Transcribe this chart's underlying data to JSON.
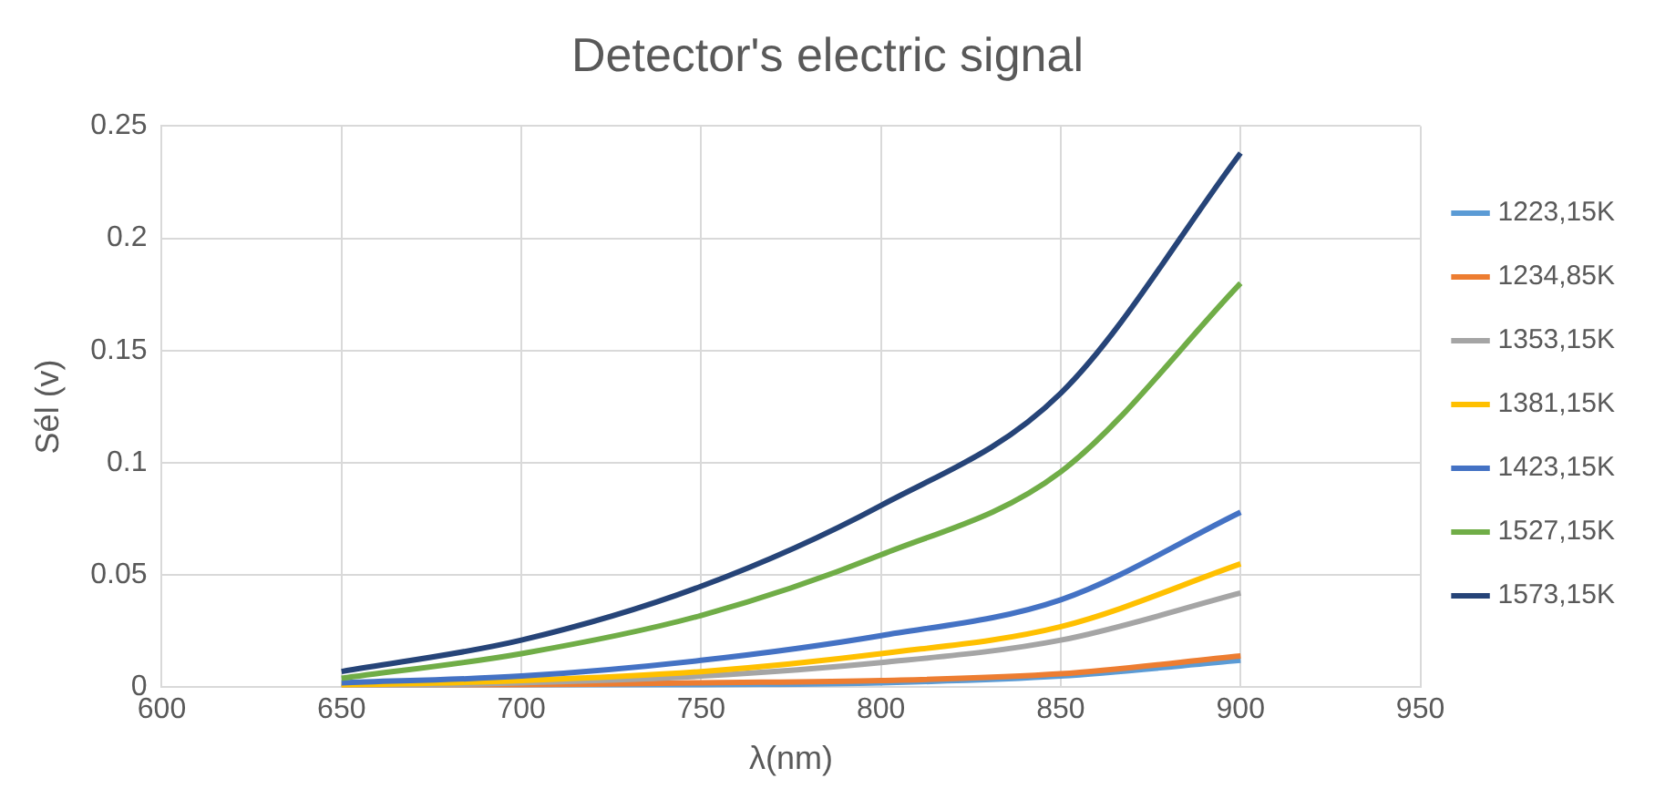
{
  "chart_data": {
    "type": "line",
    "title": "Detector's electric signal",
    "xlabel": "λ(nm)",
    "ylabel": "Sél (v)",
    "x": [
      650,
      700,
      750,
      800,
      850,
      900
    ],
    "series": [
      {
        "name": "1223,15K",
        "color": "#5b9bd5",
        "values": [
          0,
          0,
          0.001,
          0.002,
          0.005,
          0.012
        ]
      },
      {
        "name": "1234,85K",
        "color": "#ed7d31",
        "values": [
          0,
          0.001,
          0.002,
          0.003,
          0.006,
          0.014
        ]
      },
      {
        "name": "1353,15K",
        "color": "#a5a5a5",
        "values": [
          0,
          0.002,
          0.005,
          0.011,
          0.021,
          0.042
        ]
      },
      {
        "name": "1381,15K",
        "color": "#ffc000",
        "values": [
          0.001,
          0.003,
          0.007,
          0.015,
          0.027,
          0.055
        ]
      },
      {
        "name": "1423,15K",
        "color": "#4472c4",
        "values": [
          0.002,
          0.005,
          0.012,
          0.023,
          0.039,
          0.078
        ]
      },
      {
        "name": "1527,15K",
        "color": "#70ad47",
        "values": [
          0.004,
          0.015,
          0.032,
          0.059,
          0.096,
          0.18
        ]
      },
      {
        "name": "1573,15K",
        "color": "#264478",
        "values": [
          0.007,
          0.021,
          0.045,
          0.081,
          0.131,
          0.238
        ]
      }
    ],
    "xlim": [
      600,
      950
    ],
    "xticks": [
      600,
      650,
      700,
      750,
      800,
      850,
      900,
      950
    ],
    "ylim": [
      0,
      0.25
    ],
    "yticks": [
      0,
      0.05,
      0.1,
      0.15,
      0.2,
      0.25
    ],
    "grid": true,
    "legend": "right",
    "marker": "none",
    "line_style": "solid"
  }
}
